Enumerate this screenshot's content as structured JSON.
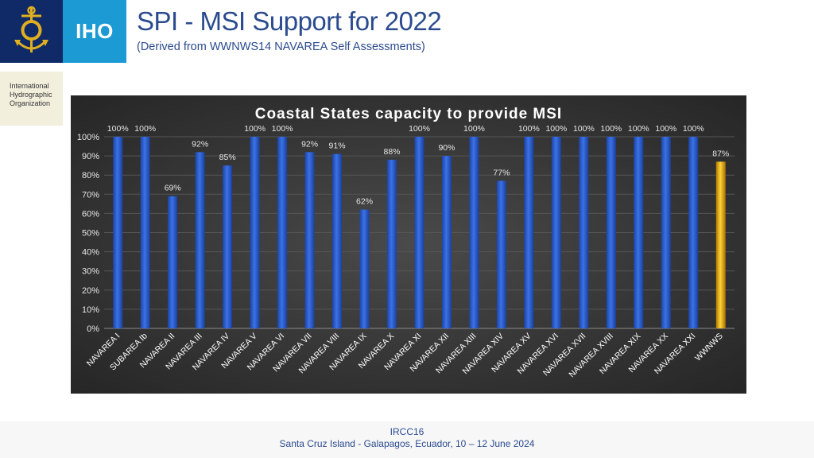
{
  "header": {
    "logo_text": "IHO",
    "org_name": "International\nHydrographic\nOrganization",
    "title": "SPI - MSI Support for 2022",
    "subtitle": "(Derived from WWNWS14 NAVAREA Self Assessments)"
  },
  "colors": {
    "bar": "#2f5fd0",
    "bar_highlight": "#e8b010",
    "chart_bg": "#3a3a3a",
    "title_text": "#ffffff"
  },
  "chart_data": {
    "type": "bar",
    "title": "Coastal States capacity to provide MSI",
    "categories": [
      "NAVAREA I",
      "SUBAREA Ib",
      "NAVAREA II",
      "NAVAREA III",
      "NAVAREA IV",
      "NAVAREA V",
      "NAVAREA VI",
      "NAVAREA VII",
      "NAVAREA VIII",
      "NAVAREA IX",
      "NAVAREA X",
      "NAVAREA XI",
      "NAVAREA XII",
      "NAVAREA XIII",
      "NAVAREA XIV",
      "NAVAREA XV",
      "NAVAREA XVI",
      "NAVAREA XVII",
      "NAVAREA XVIII",
      "NAVAREA XIX",
      "NAVAREA XX",
      "NAVAREA XXI",
      "WWNWS"
    ],
    "values": [
      100,
      100,
      69,
      92,
      85,
      100,
      100,
      92,
      91,
      62,
      88,
      100,
      90,
      100,
      77,
      100,
      100,
      100,
      100,
      100,
      100,
      100,
      87
    ],
    "data_labels": [
      "100%",
      "100%",
      "69%",
      "92%",
      "85%",
      "100%",
      "100%",
      "92%",
      "91%",
      "62%",
      "88%",
      "100%",
      "90%",
      "100%",
      "77%",
      "100%",
      "100%",
      "100%",
      "100%",
      "100%",
      "100%",
      "100%",
      "87%"
    ],
    "highlight_category": "WWNWS",
    "ylim": [
      0,
      100
    ],
    "yticks": [
      0,
      10,
      20,
      30,
      40,
      50,
      60,
      70,
      80,
      90,
      100
    ],
    "ytick_labels": [
      "0%",
      "10%",
      "20%",
      "30%",
      "40%",
      "50%",
      "60%",
      "70%",
      "80%",
      "90%",
      "100%"
    ],
    "grid": true,
    "xlabel": "",
    "ylabel": ""
  },
  "footer": {
    "line1": "IRCC16",
    "line2": "Santa Cruz Island - Galapagos, Ecuador, 10 – 12 June 2024"
  }
}
